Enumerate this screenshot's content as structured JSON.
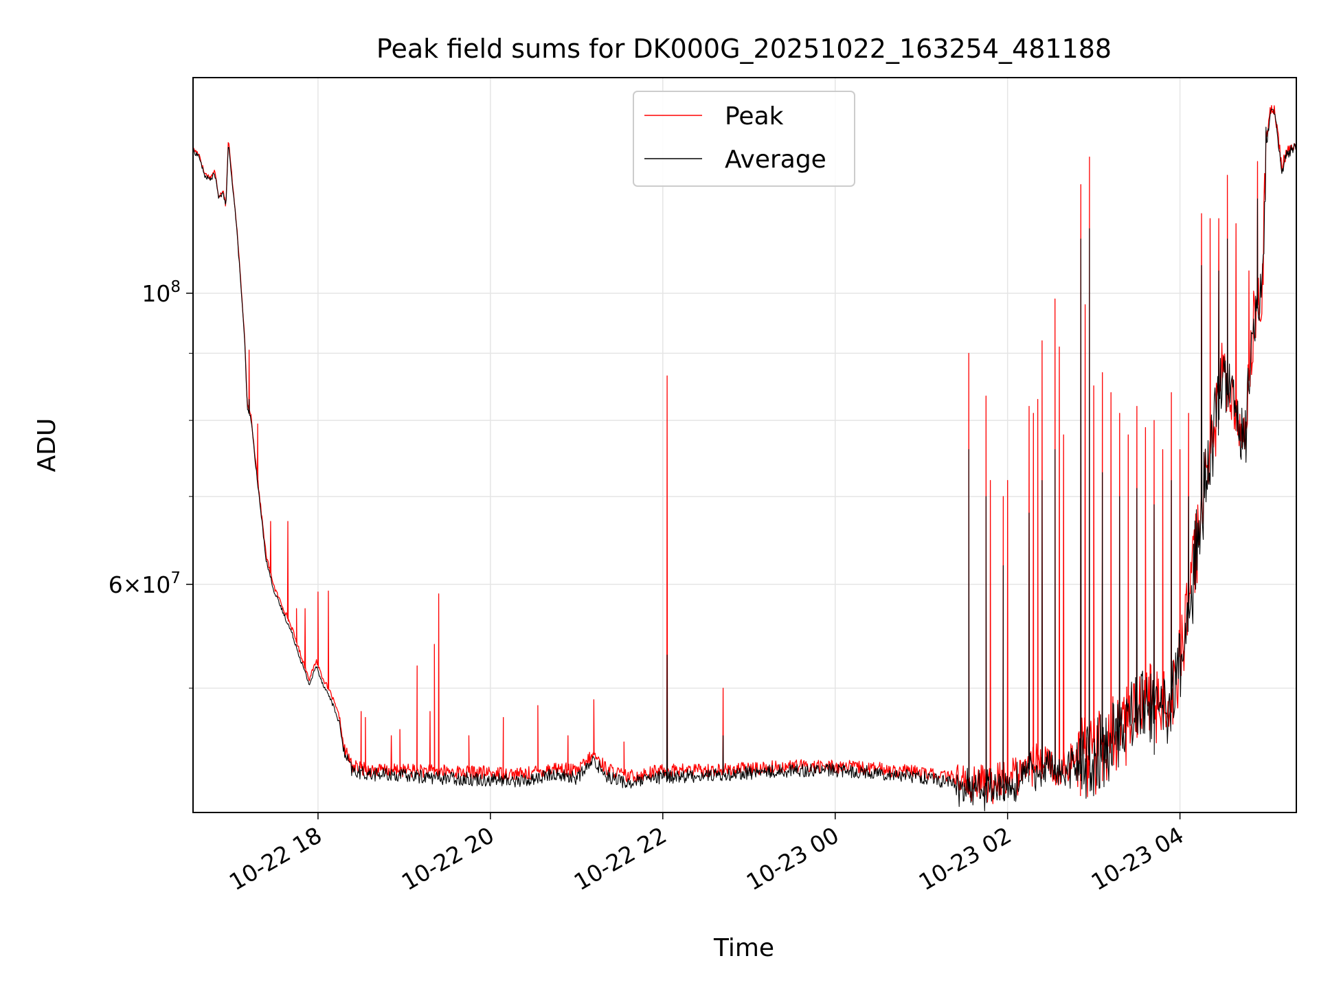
{
  "chart_data": {
    "type": "line",
    "title": "Peak field sums for DK000G_20251022_163254_481188",
    "xlabel": "Time",
    "ylabel": "ADU",
    "y_scale": "log",
    "ylim": [
      40200000,
      146000000
    ],
    "xlim_hours": [
      16.55,
      29.35
    ],
    "grid": true,
    "legend_position": "upper-center",
    "x_ticks": [
      {
        "hour": 18,
        "label": "10-22 18"
      },
      {
        "hour": 20,
        "label": "10-22 20"
      },
      {
        "hour": 22,
        "label": "10-22 22"
      },
      {
        "hour": 24,
        "label": "10-23 00"
      },
      {
        "hour": 26,
        "label": "10-23 02"
      },
      {
        "hour": 28,
        "label": "10-23 04"
      }
    ],
    "y_major_ticks": [
      {
        "value": 100000000,
        "base": "10",
        "exp": "8",
        "mantissa": ""
      },
      {
        "value": 60000000,
        "base": "10",
        "exp": "7",
        "mantissa": "6"
      }
    ],
    "y_minor_gridlines": [
      50000000,
      70000000,
      80000000,
      90000000
    ],
    "series": [
      {
        "name": "Peak",
        "color": "#ff0000",
        "baseline": [
          [
            16.55,
            128800000
          ],
          [
            16.62,
            127700000
          ],
          [
            16.68,
            123500000
          ],
          [
            16.75,
            122500000
          ],
          [
            16.8,
            124000000
          ],
          [
            16.85,
            118500000
          ],
          [
            16.9,
            120000000
          ],
          [
            16.93,
            116500000
          ],
          [
            16.96,
            131000000
          ],
          [
            17.0,
            123000000
          ],
          [
            17.05,
            114000000
          ],
          [
            17.1,
            103000000
          ],
          [
            17.15,
            92000000
          ],
          [
            17.18,
            82000000
          ],
          [
            17.22,
            81000000
          ],
          [
            17.3,
            72000000
          ],
          [
            17.4,
            63000000
          ],
          [
            17.5,
            59500000
          ],
          [
            17.6,
            57500000
          ],
          [
            17.7,
            55500000
          ],
          [
            17.8,
            53000000
          ],
          [
            17.9,
            50800000
          ],
          [
            17.98,
            52500000
          ],
          [
            18.05,
            51000000
          ],
          [
            18.15,
            49500000
          ],
          [
            18.25,
            47500000
          ],
          [
            18.3,
            45000000
          ],
          [
            18.4,
            43600000
          ],
          [
            18.6,
            43300000
          ],
          [
            19.0,
            43300000
          ],
          [
            19.5,
            43200000
          ],
          [
            20.0,
            43100000
          ],
          [
            20.4,
            43000000
          ],
          [
            20.75,
            43500000
          ],
          [
            21.0,
            43200000
          ],
          [
            21.2,
            44500000
          ],
          [
            21.35,
            43400000
          ],
          [
            21.6,
            42800000
          ],
          [
            22.0,
            43300000
          ],
          [
            22.5,
            43300000
          ],
          [
            23.0,
            43400000
          ],
          [
            23.5,
            43600000
          ],
          [
            24.0,
            43600000
          ],
          [
            24.5,
            43400000
          ],
          [
            25.0,
            43100000
          ],
          [
            25.3,
            42800000
          ],
          [
            25.7,
            42500000
          ],
          [
            26.0,
            42700000
          ],
          [
            26.2,
            43600000
          ],
          [
            26.4,
            44300000
          ],
          [
            26.6,
            43400000
          ],
          [
            26.8,
            44500000
          ],
          [
            27.0,
            45500000
          ],
          [
            27.2,
            46500000
          ],
          [
            27.4,
            48000000
          ],
          [
            27.6,
            49500000
          ],
          [
            27.8,
            48500000
          ],
          [
            27.9,
            49500000
          ],
          [
            28.0,
            54000000
          ],
          [
            28.1,
            58000000
          ],
          [
            28.2,
            66000000
          ],
          [
            28.3,
            74000000
          ],
          [
            28.4,
            80000000
          ],
          [
            28.5,
            88000000
          ],
          [
            28.6,
            84000000
          ],
          [
            28.75,
            78000000
          ],
          [
            28.85,
            96000000
          ],
          [
            28.95,
            100000000
          ],
          [
            29.0,
            130000000
          ],
          [
            29.05,
            138000000
          ],
          [
            29.1,
            138000000
          ],
          [
            29.18,
            125000000
          ],
          [
            29.25,
            128500000
          ],
          [
            29.35,
            130000000
          ]
        ],
        "spikes": [
          [
            17.2,
            90500000
          ],
          [
            17.3,
            79500000
          ],
          [
            17.45,
            67000000
          ],
          [
            17.65,
            67000000
          ],
          [
            17.75,
            57500000
          ],
          [
            17.85,
            57500000
          ],
          [
            18.0,
            59200000
          ],
          [
            18.12,
            59300000
          ],
          [
            18.5,
            48000000
          ],
          [
            18.55,
            47500000
          ],
          [
            18.85,
            46000000
          ],
          [
            18.95,
            46500000
          ],
          [
            19.15,
            52000000
          ],
          [
            19.3,
            48000000
          ],
          [
            19.35,
            54000000
          ],
          [
            19.4,
            59000000
          ],
          [
            19.75,
            46000000
          ],
          [
            20.15,
            47500000
          ],
          [
            20.55,
            48500000
          ],
          [
            20.9,
            46000000
          ],
          [
            21.2,
            49000000
          ],
          [
            21.55,
            45500000
          ],
          [
            22.05,
            86500000
          ],
          [
            22.7,
            50000000
          ],
          [
            25.55,
            90000000
          ],
          [
            25.75,
            83500000
          ],
          [
            25.8,
            72000000
          ],
          [
            25.95,
            70000000
          ],
          [
            26.0,
            72000000
          ],
          [
            26.25,
            82000000
          ],
          [
            26.3,
            81000000
          ],
          [
            26.35,
            83000000
          ],
          [
            26.4,
            92000000
          ],
          [
            26.55,
            99000000
          ],
          [
            26.6,
            91000000
          ],
          [
            26.65,
            78000000
          ],
          [
            26.85,
            121000000
          ],
          [
            26.9,
            98000000
          ],
          [
            26.95,
            127000000
          ],
          [
            27.0,
            85000000
          ],
          [
            27.1,
            87000000
          ],
          [
            27.2,
            84000000
          ],
          [
            27.3,
            81000000
          ],
          [
            27.4,
            78000000
          ],
          [
            27.5,
            82000000
          ],
          [
            27.6,
            79000000
          ],
          [
            27.7,
            80000000
          ],
          [
            27.8,
            76000000
          ],
          [
            27.9,
            84000000
          ],
          [
            28.0,
            76000000
          ],
          [
            28.1,
            81000000
          ],
          [
            28.25,
            115000000
          ],
          [
            28.35,
            114000000
          ],
          [
            28.45,
            114000000
          ],
          [
            28.55,
            123000000
          ],
          [
            28.65,
            113000000
          ],
          [
            28.8,
            104000000
          ],
          [
            28.9,
            126000000
          ]
        ]
      },
      {
        "name": "Average",
        "color": "#000000",
        "baseline": [
          [
            16.55,
            128300000
          ],
          [
            16.62,
            127200000
          ],
          [
            16.68,
            123000000
          ],
          [
            16.75,
            122000000
          ],
          [
            16.8,
            123500000
          ],
          [
            16.85,
            118000000
          ],
          [
            16.9,
            119500000
          ],
          [
            16.93,
            116000000
          ],
          [
            16.96,
            130000000
          ],
          [
            17.0,
            122500000
          ],
          [
            17.05,
            113500000
          ],
          [
            17.1,
            102500000
          ],
          [
            17.15,
            91500000
          ],
          [
            17.18,
            81500000
          ],
          [
            17.22,
            80500000
          ],
          [
            17.3,
            71500000
          ],
          [
            17.4,
            62500000
          ],
          [
            17.5,
            59000000
          ],
          [
            17.6,
            57000000
          ],
          [
            17.7,
            55000000
          ],
          [
            17.8,
            52500000
          ],
          [
            17.9,
            50300000
          ],
          [
            17.98,
            52000000
          ],
          [
            18.05,
            50500000
          ],
          [
            18.15,
            49000000
          ],
          [
            18.25,
            47000000
          ],
          [
            18.3,
            44600000
          ],
          [
            18.4,
            43200000
          ],
          [
            18.6,
            43000000
          ],
          [
            19.0,
            42900000
          ],
          [
            19.5,
            42700000
          ],
          [
            20.0,
            42600000
          ],
          [
            20.4,
            42500000
          ],
          [
            20.75,
            43000000
          ],
          [
            21.0,
            42700000
          ],
          [
            21.2,
            44000000
          ],
          [
            21.35,
            42900000
          ],
          [
            21.6,
            42300000
          ],
          [
            22.0,
            42800000
          ],
          [
            22.5,
            42900000
          ],
          [
            23.0,
            43100000
          ],
          [
            23.5,
            43300000
          ],
          [
            24.0,
            43300000
          ],
          [
            24.5,
            43100000
          ],
          [
            25.0,
            42800000
          ],
          [
            25.3,
            42400000
          ],
          [
            25.7,
            42100000
          ],
          [
            26.0,
            42300000
          ],
          [
            26.2,
            43200000
          ],
          [
            26.4,
            43900000
          ],
          [
            26.6,
            43000000
          ],
          [
            26.8,
            44000000
          ],
          [
            27.0,
            45000000
          ],
          [
            27.2,
            46000000
          ],
          [
            27.4,
            47500000
          ],
          [
            27.6,
            49000000
          ],
          [
            27.8,
            48000000
          ],
          [
            27.9,
            49000000
          ],
          [
            28.0,
            53500000
          ],
          [
            28.1,
            57500000
          ],
          [
            28.2,
            65500000
          ],
          [
            28.3,
            73500000
          ],
          [
            28.4,
            79500000
          ],
          [
            28.5,
            87500000
          ],
          [
            28.6,
            83500000
          ],
          [
            28.75,
            77500000
          ],
          [
            28.85,
            95500000
          ],
          [
            28.95,
            99500000
          ],
          [
            29.0,
            129000000
          ],
          [
            29.05,
            137000000
          ],
          [
            29.1,
            137000000
          ],
          [
            29.18,
            124000000
          ],
          [
            29.25,
            128000000
          ],
          [
            29.35,
            129500000
          ]
        ],
        "spikes": [
          [
            17.2,
            83000000
          ],
          [
            22.05,
            53000000
          ],
          [
            22.7,
            46000000
          ],
          [
            25.55,
            76000000
          ],
          [
            25.75,
            70000000
          ],
          [
            25.95,
            62000000
          ],
          [
            26.25,
            68000000
          ],
          [
            26.4,
            72000000
          ],
          [
            26.55,
            76000000
          ],
          [
            26.85,
            110000000
          ],
          [
            26.95,
            112000000
          ],
          [
            27.1,
            73000000
          ],
          [
            27.3,
            70000000
          ],
          [
            27.5,
            71000000
          ],
          [
            27.7,
            69000000
          ],
          [
            27.9,
            72000000
          ],
          [
            28.1,
            70000000
          ],
          [
            28.25,
            105000000
          ],
          [
            28.45,
            104000000
          ],
          [
            28.55,
            110000000
          ],
          [
            28.9,
            118000000
          ]
        ]
      }
    ]
  }
}
